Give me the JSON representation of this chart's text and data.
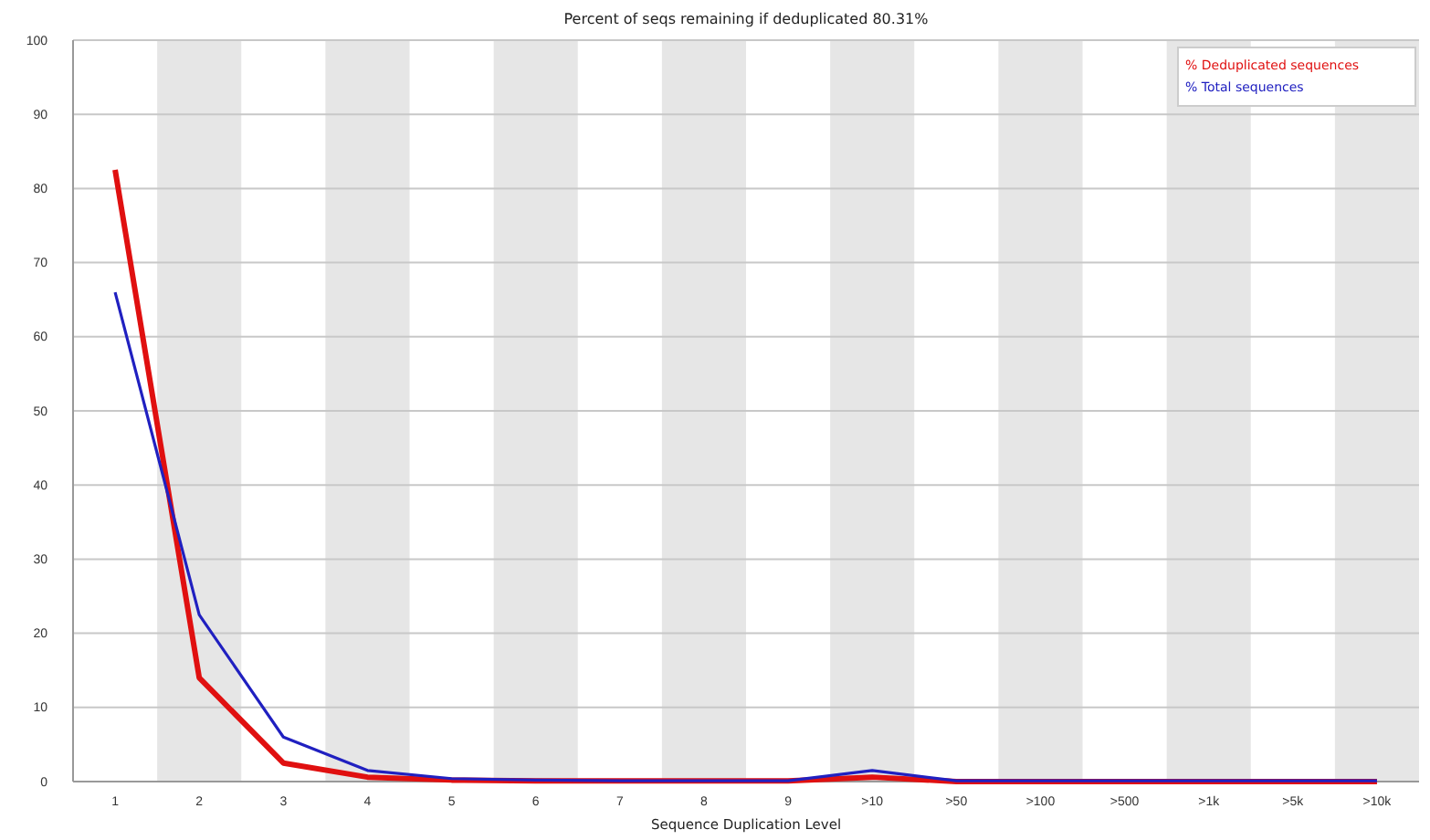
{
  "chart_data": {
    "type": "line",
    "title": "Percent of seqs remaining if deduplicated 80.31%",
    "xlabel": "Sequence Duplication Level",
    "categories": [
      "1",
      "2",
      "3",
      "4",
      "5",
      "6",
      "7",
      "8",
      "9",
      ">10",
      ">50",
      ">100",
      ">500",
      ">1k",
      ">5k",
      ">10k"
    ],
    "series": [
      {
        "name": "% Deduplicated sequences",
        "color": "#e01010",
        "values": [
          82.5,
          14,
          2.5,
          0.6,
          0.2,
          0.1,
          0.1,
          0.1,
          0.1,
          0.6,
          0,
          0,
          0,
          0,
          0,
          0
        ]
      },
      {
        "name": "% Total sequences",
        "color": "#2020c0",
        "values": [
          66,
          22.5,
          6,
          1.5,
          0.4,
          0.2,
          0.1,
          0.1,
          0.1,
          1.5,
          0.1,
          0.1,
          0.1,
          0.1,
          0.1,
          0.1
        ]
      }
    ],
    "ylim": [
      0,
      100
    ],
    "yticks": [
      0,
      10,
      20,
      30,
      40,
      50,
      60,
      70,
      80,
      90,
      100
    ],
    "grid": "y",
    "legend": "top right"
  }
}
